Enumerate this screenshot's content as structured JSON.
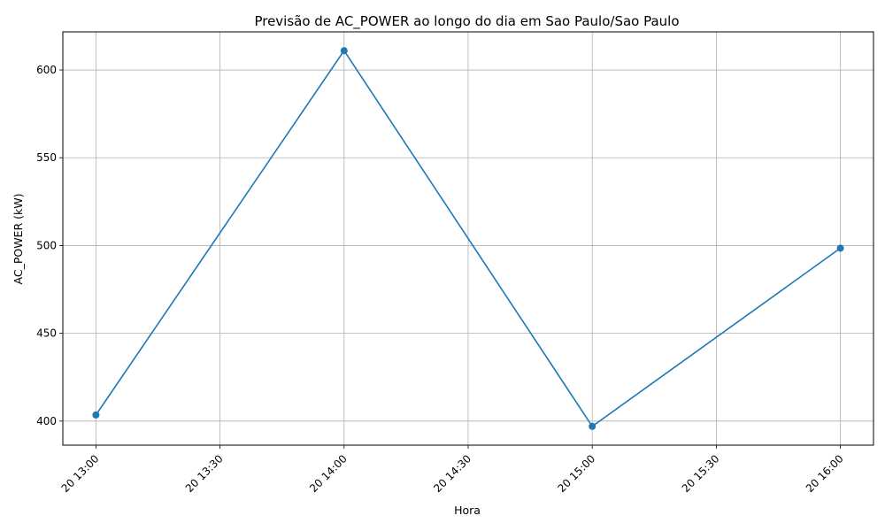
{
  "chart_data": {
    "type": "line",
    "title": "Previsão de AC_POWER ao longo do dia em Sao Paulo/Sao Paulo",
    "xlabel": "Hora",
    "ylabel": "AC_POWER (kW)",
    "x": [
      "20 13:00",
      "20 14:00",
      "20 15:00",
      "20 16:00"
    ],
    "series": [
      {
        "values": [
          403.5,
          611.0,
          397.0,
          498.5
        ]
      }
    ],
    "x_ticks": [
      "20 13:00",
      "20 13:30",
      "20 14:00",
      "20 14:30",
      "20 15:00",
      "20 15:30",
      "20 16:00"
    ],
    "y_ticks": [
      400,
      450,
      500,
      550,
      600
    ],
    "xlim": [
      "20 12:52",
      "20 16:08"
    ],
    "ylim": [
      386.3,
      621.7
    ],
    "grid": true,
    "legend": "none",
    "colors": {
      "line": "#1f77b4",
      "grid": "#b0b0b0",
      "axes": "#000000"
    }
  }
}
